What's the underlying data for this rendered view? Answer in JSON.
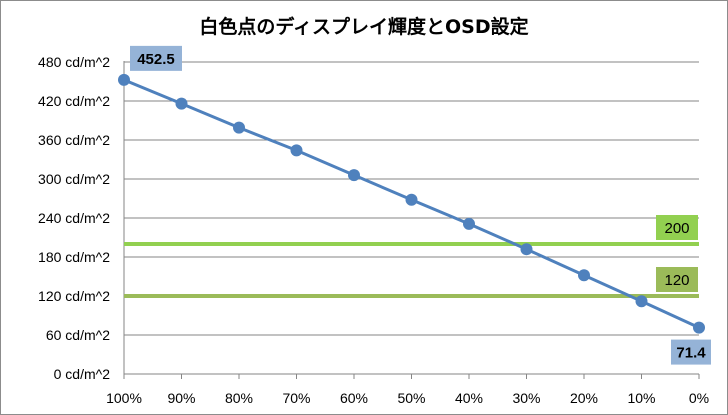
{
  "chart_data": {
    "type": "line",
    "title": "白色点のディスプレイ輝度とOSD設定",
    "categories": [
      "100%",
      "90%",
      "80%",
      "70%",
      "60%",
      "50%",
      "40%",
      "30%",
      "20%",
      "10%",
      "0%"
    ],
    "series": [
      {
        "values": [
          452.5,
          416,
          379,
          344,
          306,
          268,
          231,
          192,
          152,
          112,
          71.4
        ],
        "color": "#4f81bd",
        "labeled_points": [
          {
            "index": 0,
            "label": "452.5"
          },
          {
            "index": 10,
            "label": "71.4"
          }
        ]
      }
    ],
    "reference_lines": [
      {
        "value": 200,
        "label": "200",
        "color": "#92d050",
        "label_bg": "#92d050"
      },
      {
        "value": 120,
        "label": "120",
        "color": "#9bbb59",
        "label_bg": "#9bbb59"
      }
    ],
    "y_ticks": [
      0,
      60,
      120,
      180,
      240,
      300,
      360,
      420,
      480
    ],
    "y_tick_labels": [
      "0 cd/m^2",
      "60 cd/m^2",
      "120 cd/m^2",
      "180 cd/m^2",
      "240 cd/m^2",
      "300 cd/m^2",
      "360 cd/m^2",
      "420 cd/m^2",
      "480 cd/m^2"
    ],
    "ylim": [
      0,
      480
    ],
    "xlabel": "",
    "ylabel": "",
    "grid": {
      "horizontal": true,
      "vertical": false,
      "color": "#868686"
    },
    "legend": "none",
    "label_box_color": "#95b3d7"
  }
}
